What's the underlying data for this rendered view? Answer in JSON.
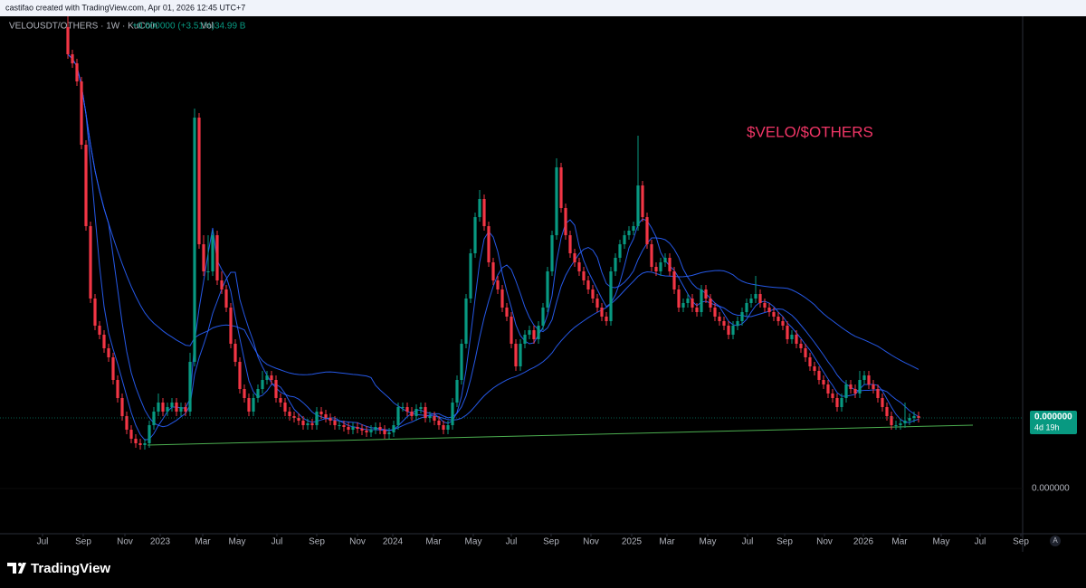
{
  "header": {
    "credit": "castifao created with TradingView.com, Apr 01, 2026 12:45 UTC+7",
    "symbol": "VELOUSDT/OTHERS · 1W · KuCoin",
    "change": "+0.000000 (+3.51%)",
    "volume_label": "Vol",
    "volume": "34.99 B"
  },
  "footer": {
    "brand": "TradingView",
    "auto_scale_button": "A"
  },
  "chart_data": {
    "type": "candlestick",
    "annotation": "$VELO/$OTHERS",
    "up_color": "#089981",
    "down_color": "#f23645",
    "annotation_color": "#f23667",
    "xlim": [
      -14,
      211
    ],
    "xticks": [
      {
        "value": -5.6,
        "label": "Jul"
      },
      {
        "value": 3.4,
        "label": "Sep"
      },
      {
        "value": 12.6,
        "label": "Nov"
      },
      {
        "value": 20.4,
        "label": "2023"
      },
      {
        "value": 29.8,
        "label": "Mar"
      },
      {
        "value": 37.4,
        "label": "May"
      },
      {
        "value": 46.2,
        "label": "Jul"
      },
      {
        "value": 55,
        "label": "Sep"
      },
      {
        "value": 64,
        "label": "Nov"
      },
      {
        "value": 71.8,
        "label": "2024"
      },
      {
        "value": 80.8,
        "label": "Mar"
      },
      {
        "value": 89.6,
        "label": "May"
      },
      {
        "value": 98,
        "label": "Jul"
      },
      {
        "value": 106.8,
        "label": "Sep"
      },
      {
        "value": 115.6,
        "label": "Nov"
      },
      {
        "value": 124.6,
        "label": "2025"
      },
      {
        "value": 132.4,
        "label": "Mar"
      },
      {
        "value": 141.4,
        "label": "May"
      },
      {
        "value": 150.2,
        "label": "Jul"
      },
      {
        "value": 158.4,
        "label": "Sep"
      },
      {
        "value": 167.2,
        "label": "Nov"
      },
      {
        "value": 175.8,
        "label": "2026"
      },
      {
        "value": 183.8,
        "label": "Mar"
      },
      {
        "value": 193,
        "label": "May"
      },
      {
        "value": 201.6,
        "label": "Jul"
      },
      {
        "value": 210.6,
        "label": "Sep"
      }
    ],
    "ylim": [
      0,
      58
    ],
    "yticks": [
      {
        "value": 5,
        "label": "0.000000"
      }
    ],
    "last_price": {
      "value": 12.8,
      "label": "0.000000",
      "countdown": "4d 19h"
    },
    "trendline": {
      "x": [
        17.6,
        200
      ],
      "y": [
        9.8,
        12
      ],
      "color": "#4caf50"
    },
    "open": [
      56,
      53,
      52,
      50,
      43,
      34,
      26,
      23,
      22,
      20.5,
      19.5,
      17,
      15,
      13,
      11.5,
      10.5,
      10,
      9.8,
      10,
      12,
      13.5,
      14.5,
      13.5,
      14,
      14.5,
      13.5,
      14,
      13.5,
      19,
      46,
      32,
      29,
      29,
      33,
      28,
      27,
      25,
      21,
      19,
      16,
      15,
      13.5,
      15,
      16,
      17,
      17.5,
      17,
      15,
      14.5,
      13.5,
      13,
      12.8,
      12.5,
      12,
      12.2,
      12,
      13.5,
      13.2,
      12.8,
      12.5,
      12,
      12,
      11.8,
      11.5,
      11.8,
      11.6,
      11.4,
      11.2,
      11.5,
      11.8,
      11.5,
      11,
      11.2,
      12,
      14,
      14,
      13.5,
      13,
      13.8,
      14,
      12.8,
      13,
      12.5,
      12,
      11.5,
      12,
      14.5,
      17,
      21,
      26,
      31,
      35,
      37,
      34,
      30,
      28,
      27,
      25,
      24,
      21,
      18.5,
      21,
      22,
      22.5,
      21.5,
      23,
      25,
      29,
      33,
      40.5,
      36,
      33,
      31,
      30,
      29,
      28,
      27,
      26,
      25,
      24,
      23.5,
      29,
      30.5,
      32,
      33,
      33.5,
      34,
      38.5,
      35,
      32,
      29.5,
      29,
      30,
      30.5,
      29,
      27,
      25,
      25.5,
      26,
      25,
      24.5,
      27,
      26,
      25,
      24,
      23.5,
      23,
      22,
      23,
      23.5,
      24.5,
      25.5,
      26,
      26.5,
      25.5,
      25,
      24.5,
      24,
      23.5,
      23,
      21.5,
      22,
      21,
      20.5,
      19.5,
      18.5,
      18,
      17,
      16.5,
      15.5,
      15,
      14,
      15,
      16.5,
      16,
      15.5,
      17,
      17.5,
      16.5,
      16,
      15,
      14,
      13,
      12,
      12,
      12.2,
      12.5,
      12.8,
      13
    ],
    "high": [
      58,
      53.5,
      52.5,
      50.5,
      43.5,
      34.5,
      26.5,
      23.5,
      22.5,
      21,
      20,
      17.5,
      15.5,
      13.5,
      12,
      11,
      10.5,
      10.5,
      12.5,
      14,
      15.5,
      15,
      14.5,
      15,
      15,
      14.5,
      14.5,
      20,
      47,
      46.5,
      33,
      33,
      33.5,
      33.5,
      29,
      27.5,
      25.5,
      21.5,
      19.5,
      16.5,
      15.5,
      15.5,
      16.5,
      18,
      18,
      18,
      17.5,
      15.5,
      15,
      14,
      13.5,
      13.3,
      13,
      12.7,
      12.7,
      14,
      14,
      13.7,
      13.3,
      13,
      12.5,
      12.5,
      12.3,
      12.3,
      12.3,
      12.1,
      11.9,
      12,
      12.3,
      12.3,
      12,
      11.7,
      12.5,
      14.5,
      14.5,
      14.5,
      14,
      14.3,
      14.5,
      14.5,
      13.5,
      13.5,
      13,
      12.5,
      12.5,
      15,
      17.5,
      21.5,
      26.5,
      31.5,
      35.5,
      38,
      37.5,
      34.5,
      30.5,
      28.5,
      27.5,
      25.5,
      24.5,
      21.5,
      21.5,
      22.5,
      23,
      23,
      23.5,
      25.5,
      29.5,
      33.5,
      41.5,
      41,
      36.5,
      33.5,
      31.5,
      30.5,
      29.5,
      28.5,
      27.5,
      26.5,
      25.5,
      24.5,
      29.5,
      31,
      32.5,
      33.5,
      34,
      34.5,
      44,
      39,
      35.5,
      32.5,
      30,
      30.5,
      31,
      31,
      29.5,
      27.5,
      26,
      26.5,
      26.5,
      25.5,
      27.5,
      27.5,
      26.5,
      25.5,
      24.5,
      24,
      23.5,
      23.5,
      24,
      25,
      26,
      26.5,
      28.5,
      27,
      26,
      25.5,
      25,
      24.5,
      24,
      23.5,
      22.5,
      22.5,
      21.5,
      21,
      20,
      19,
      18.5,
      17.5,
      17,
      16,
      15.5,
      15.5,
      17,
      17,
      16.5,
      18,
      18,
      18,
      17,
      16.5,
      15.5,
      14.5,
      13.5,
      12.5,
      12.7,
      14.5,
      13.3,
      13.5,
      13.5
    ],
    "low": [
      52.5,
      51.5,
      49.5,
      42.5,
      33.5,
      25.5,
      22.5,
      21.5,
      20,
      19,
      16.5,
      14.5,
      12.5,
      11,
      10,
      9.5,
      9.3,
      9.3,
      9.5,
      11.5,
      13,
      13,
      13,
      13.5,
      13,
      13,
      13,
      13,
      18.5,
      31.5,
      28.5,
      28,
      28.5,
      27.5,
      26.5,
      24.5,
      20.5,
      18.5,
      15.5,
      14.5,
      13,
      13,
      14.5,
      15.5,
      16.5,
      16.5,
      14.5,
      14,
      13,
      12.5,
      12.3,
      12,
      11.5,
      11.5,
      11.5,
      11.5,
      12.7,
      12.3,
      12,
      11.5,
      11.5,
      11.3,
      11,
      11,
      11.1,
      10.9,
      10.7,
      10.7,
      11,
      11,
      10.5,
      10.5,
      10.7,
      11.5,
      13.5,
      13,
      12.5,
      12.5,
      13.3,
      12.3,
      12.3,
      12,
      11.5,
      11,
      11,
      11.5,
      14,
      16.5,
      20.5,
      25.5,
      30.5,
      34.5,
      33.5,
      29.5,
      27.5,
      26.5,
      24.5,
      23.5,
      20.5,
      18,
      18,
      20.5,
      21.5,
      21,
      21,
      22.5,
      24.5,
      28.5,
      32.5,
      35.5,
      32.5,
      30.5,
      29.5,
      28.5,
      27.5,
      26.5,
      25.5,
      24.5,
      23.5,
      23,
      23,
      28.5,
      30,
      31.5,
      32.5,
      33,
      33.5,
      34.5,
      31.5,
      29,
      28.5,
      28.5,
      29.5,
      28.5,
      26.5,
      24.5,
      24.5,
      25,
      24.5,
      24,
      24,
      25.5,
      24.5,
      23.5,
      23,
      22.5,
      21.5,
      21.5,
      22.5,
      23,
      24,
      25,
      25.5,
      25,
      24.5,
      24,
      23.5,
      23,
      22.5,
      21,
      21,
      20.5,
      20,
      19,
      18,
      17.5,
      16.5,
      16,
      15,
      14.5,
      13.5,
      13.5,
      14.5,
      15.5,
      15,
      15,
      16.5,
      16,
      15.5,
      14.5,
      13.5,
      12.5,
      11.5,
      11.5,
      11.5,
      11.7,
      12,
      12.3,
      12.3
    ],
    "close": [
      53,
      52,
      50,
      43,
      34,
      26,
      23,
      22,
      20.5,
      19.5,
      17,
      15,
      13,
      11.5,
      10.5,
      10,
      9.8,
      10,
      12,
      13.5,
      14.5,
      13.5,
      14,
      14.5,
      13.5,
      14,
      13.5,
      19,
      46,
      32,
      29,
      29,
      33,
      28,
      27,
      25,
      21,
      19,
      16,
      15,
      13.5,
      15,
      16,
      17,
      17.5,
      17,
      15,
      14.5,
      13.5,
      13,
      12.8,
      12.5,
      12,
      12.2,
      12,
      13.5,
      13.2,
      12.8,
      12.5,
      12,
      12,
      11.8,
      11.5,
      11.8,
      11.6,
      11.4,
      11.2,
      11.5,
      11.8,
      11.5,
      11,
      11.2,
      12,
      14,
      14,
      13.5,
      13,
      13.8,
      14,
      12.8,
      13,
      12.5,
      12,
      11.5,
      12,
      14.5,
      17,
      21,
      26,
      31,
      35,
      37,
      34,
      30,
      28,
      27,
      25,
      24,
      21,
      18.5,
      21,
      22,
      22.5,
      21.5,
      23,
      25,
      29,
      33,
      40.5,
      36,
      33,
      31,
      30,
      29,
      28,
      27,
      26,
      25,
      24,
      23.5,
      29,
      30.5,
      32,
      33,
      33.5,
      34,
      38.5,
      35,
      32,
      29.5,
      29,
      30,
      30.5,
      29,
      27,
      25,
      25.5,
      26,
      25,
      24.5,
      27,
      26,
      25,
      24,
      23.5,
      23,
      22,
      23,
      23.5,
      24.5,
      25.5,
      26,
      26.5,
      25.5,
      25,
      24.5,
      24,
      23.5,
      23,
      21.5,
      22,
      21,
      20.5,
      19.5,
      18.5,
      18,
      17,
      16.5,
      15.5,
      15,
      14,
      15,
      16.5,
      16,
      15.5,
      17,
      17.5,
      16.5,
      16,
      15,
      14,
      13,
      12,
      12,
      12.2,
      12.5,
      12.8,
      13,
      12.8
    ]
  }
}
